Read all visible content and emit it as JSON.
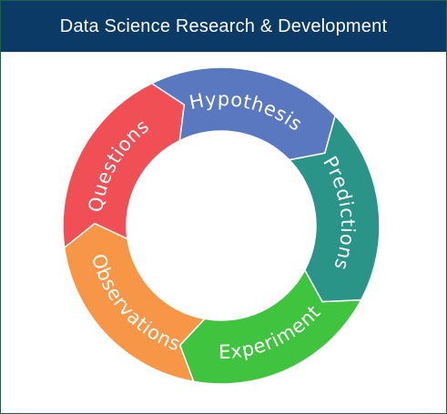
{
  "header": {
    "title": "Data Science Research & Development",
    "background": "#0b3a66"
  },
  "cycle": {
    "stages": [
      {
        "id": "observations",
        "label": "Observations",
        "color": "#f79646"
      },
      {
        "id": "questions",
        "label": "Questions",
        "color": "#f04f55"
      },
      {
        "id": "hypothesis",
        "label": "Hypothesis",
        "color": "#5a78c0"
      },
      {
        "id": "predictions",
        "label": "Predictions",
        "color": "#2a9488"
      },
      {
        "id": "experiment",
        "label": "Experiment",
        "color": "#40c440"
      }
    ]
  }
}
